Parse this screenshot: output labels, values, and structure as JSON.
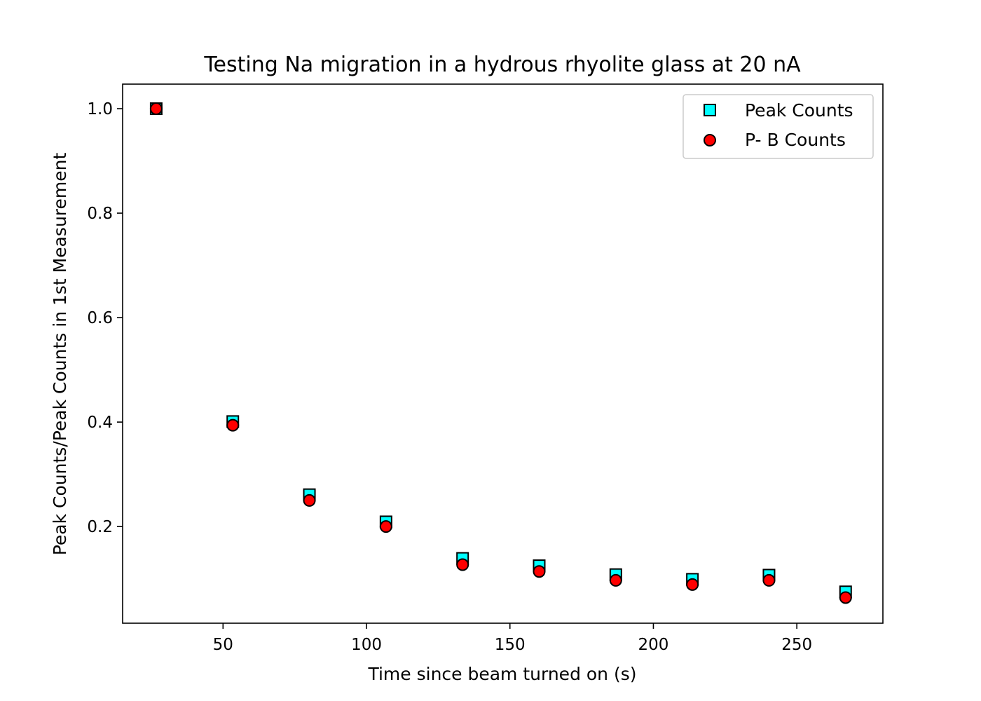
{
  "chart_data": {
    "type": "scatter",
    "title": "Testing Na migration in a hydrous rhyolite glass at 20 nA",
    "xlabel": "Time since beam turned on (s)",
    "ylabel": "Peak Counts/Peak Counts in 1st Measurement",
    "xlim": [
      15,
      280
    ],
    "ylim": [
      0.015,
      1.047
    ],
    "xticks": [
      50,
      100,
      150,
      200,
      250
    ],
    "yticks": [
      0.2,
      0.4,
      0.6,
      0.8,
      1.0
    ],
    "xtick_labels": [
      "50",
      "100",
      "150",
      "200",
      "250"
    ],
    "ytick_labels": [
      "0.2",
      "0.4",
      "0.6",
      "0.8",
      "1.0"
    ],
    "grid": false,
    "legend_position": "top-right",
    "x": [
      26.7,
      53.4,
      80.1,
      106.8,
      133.5,
      160.2,
      186.9,
      213.6,
      240.3,
      267.0
    ],
    "series": [
      {
        "name": "Peak Counts",
        "marker": "square",
        "color": "#00ffff",
        "edge_color": "#000000",
        "values": [
          1.0,
          0.401,
          0.261,
          0.209,
          0.139,
          0.125,
          0.108,
          0.099,
          0.107,
          0.075
        ]
      },
      {
        "name": "P- B Counts",
        "marker": "circle",
        "color": "#ff0000",
        "edge_color": "#000000",
        "values": [
          1.0,
          0.394,
          0.25,
          0.2,
          0.127,
          0.114,
          0.097,
          0.089,
          0.097,
          0.064
        ]
      }
    ]
  }
}
